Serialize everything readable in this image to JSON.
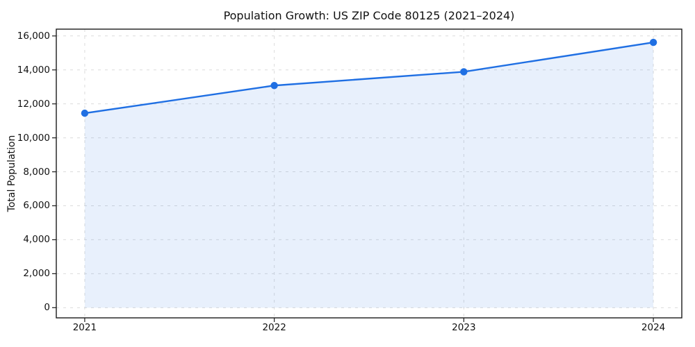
{
  "chart_data": {
    "type": "area",
    "title": "Population Growth: US ZIP Code 80125 (2021–2024)",
    "xlabel": "",
    "ylabel": "Total Population",
    "x": [
      2021,
      2022,
      2023,
      2024
    ],
    "x_tick_labels": [
      "2021",
      "2022",
      "2023",
      "2024"
    ],
    "series": [
      {
        "name": "Total Population",
        "values": [
          11450,
          13080,
          13890,
          15620
        ]
      }
    ],
    "y_ticks": [
      0,
      2000,
      4000,
      6000,
      8000,
      10000,
      12000,
      14000,
      16000
    ],
    "y_tick_labels": [
      "0",
      "2,000",
      "4,000",
      "6,000",
      "8,000",
      "10,000",
      "12,000",
      "14,000",
      "16,000"
    ],
    "xlim": [
      2020.85,
      2024.15
    ],
    "ylim": [
      -600,
      16400
    ],
    "grid": true,
    "grid_style": "dashed",
    "legend": "none",
    "marker": "circle",
    "colors": {
      "line": "#1f6fe3",
      "fill": "rgba(31,111,227,0.10)",
      "grid": "#dcdcdc",
      "axis": "#1a1a1a",
      "text": "#111111",
      "background": "#ffffff"
    }
  }
}
